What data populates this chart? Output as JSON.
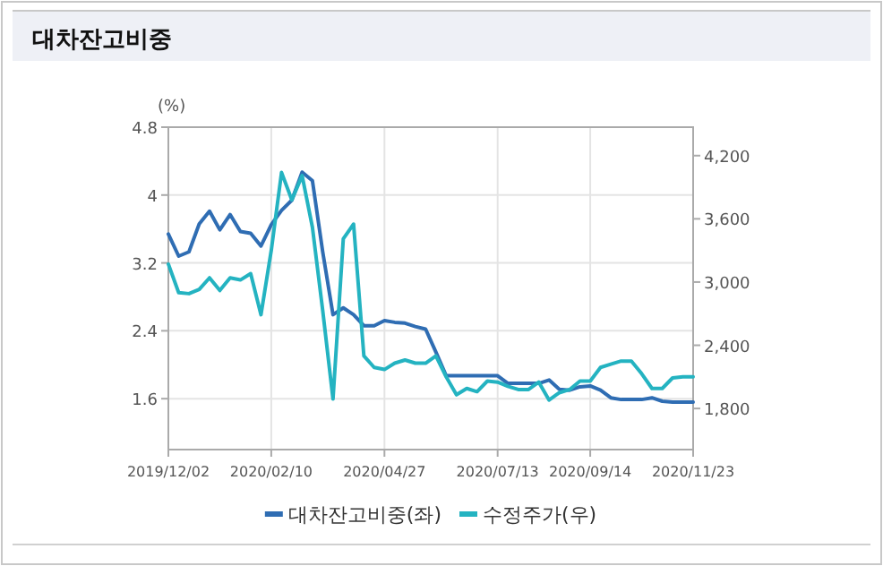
{
  "chart_data": {
    "type": "line",
    "title": "대차잔고비중",
    "ylabel": "(%)",
    "x": [
      "2019-12-02",
      "2019-12-09",
      "2019-12-16",
      "2019-12-23",
      "2019-12-30",
      "2020-01-06",
      "2020-01-13",
      "2020-01-20",
      "2020-01-27",
      "2020-02-03",
      "2020-02-10",
      "2020-02-17",
      "2020-02-24",
      "2020-03-02",
      "2020-03-09",
      "2020-03-16",
      "2020-03-23",
      "2020-03-30",
      "2020-04-06",
      "2020-04-13",
      "2020-04-20",
      "2020-04-27",
      "2020-05-04",
      "2020-05-11",
      "2020-05-18",
      "2020-05-25",
      "2020-06-01",
      "2020-06-08",
      "2020-06-15",
      "2020-06-22",
      "2020-06-29",
      "2020-07-06",
      "2020-07-13",
      "2020-07-20",
      "2020-07-27",
      "2020-08-03",
      "2020-08-10",
      "2020-08-17",
      "2020-08-24",
      "2020-08-31",
      "2020-09-07",
      "2020-09-14",
      "2020-09-21",
      "2020-09-28",
      "2020-10-05",
      "2020-10-12",
      "2020-10-19",
      "2020-10-26",
      "2020-11-02",
      "2020-11-09",
      "2020-11-16",
      "2020-11-23"
    ],
    "series": [
      {
        "name": "대차잔고비중(좌)",
        "color": "#2f6db3",
        "values": [
          3.54,
          3.28,
          3.33,
          3.66,
          3.81,
          3.59,
          3.77,
          3.57,
          3.55,
          3.4,
          3.65,
          3.82,
          3.94,
          4.27,
          4.17,
          3.33,
          2.59,
          2.67,
          2.59,
          2.46,
          2.46,
          2.52,
          2.5,
          2.49,
          2.45,
          2.42,
          2.15,
          1.87,
          1.87,
          1.87,
          1.87,
          1.87,
          1.87,
          1.78,
          1.78,
          1.78,
          1.78,
          1.82,
          1.71,
          1.7,
          1.74,
          1.75,
          1.7,
          1.61,
          1.59,
          1.59,
          1.59,
          1.61,
          1.57,
          1.56,
          1.56,
          1.56
        ]
      },
      {
        "name": "수정주가(우)",
        "color": "#24b3c1",
        "axis": "y2",
        "values": [
          3170,
          2900,
          2890,
          2930,
          3040,
          2920,
          3040,
          3020,
          3080,
          2690,
          3300,
          4040,
          3780,
          4010,
          3520,
          2730,
          1890,
          3410,
          3550,
          2300,
          2190,
          2170,
          2230,
          2260,
          2230,
          2230,
          2300,
          2100,
          1930,
          1990,
          1960,
          2060,
          2050,
          2010,
          1980,
          1980,
          2050,
          1880,
          1950,
          1980,
          2060,
          2060,
          2190,
          2220,
          2250,
          2250,
          2130,
          1990,
          1990,
          2090,
          2100,
          2100
        ]
      }
    ],
    "xlim": [
      "2019-12-02",
      "2020-11-23"
    ],
    "xticks": [
      {
        "value": "2019-12-02",
        "label": "2019/12/02"
      },
      {
        "value": "2020-02-10",
        "label": "2020/02/10"
      },
      {
        "value": "2020-04-27",
        "label": "2020/04/27"
      },
      {
        "value": "2020-07-13",
        "label": "2020/07/13"
      },
      {
        "value": "2020-09-14",
        "label": "2020/09/14"
      },
      {
        "value": "2020-11-23",
        "label": "2020/11/23"
      }
    ],
    "ylim": [
      1.0,
      4.8
    ],
    "yticks": [
      1.6,
      2.4,
      3.2,
      4,
      4.8
    ],
    "y2lim": [
      1410,
      4470
    ],
    "y2ticks": [
      {
        "value": 1800,
        "label": "1,800"
      },
      {
        "value": 2400,
        "label": "2,400"
      },
      {
        "value": 3000,
        "label": "3,000"
      },
      {
        "value": 3600,
        "label": "3,600"
      },
      {
        "value": 4200,
        "label": "4,200"
      }
    ],
    "grid": true,
    "legend": "bottom"
  }
}
